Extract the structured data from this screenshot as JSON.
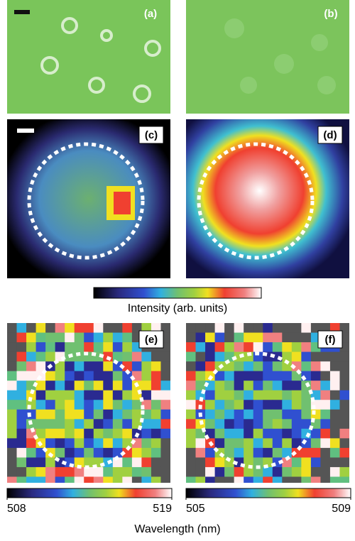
{
  "panels": [
    {
      "label": "(a)"
    },
    {
      "label": "(b)"
    },
    {
      "label": "(c)"
    },
    {
      "label": "(d)"
    },
    {
      "label": "(e)"
    },
    {
      "label": "(f)"
    }
  ],
  "intensity_colorbar": {
    "label": "Intensity (arb. units)"
  },
  "wavelength_colorbars": [
    {
      "ticks": [
        508,
        519
      ]
    },
    {
      "ticks": [
        505,
        509
      ]
    }
  ],
  "wavelength_label": "Wavelength (nm)"
}
